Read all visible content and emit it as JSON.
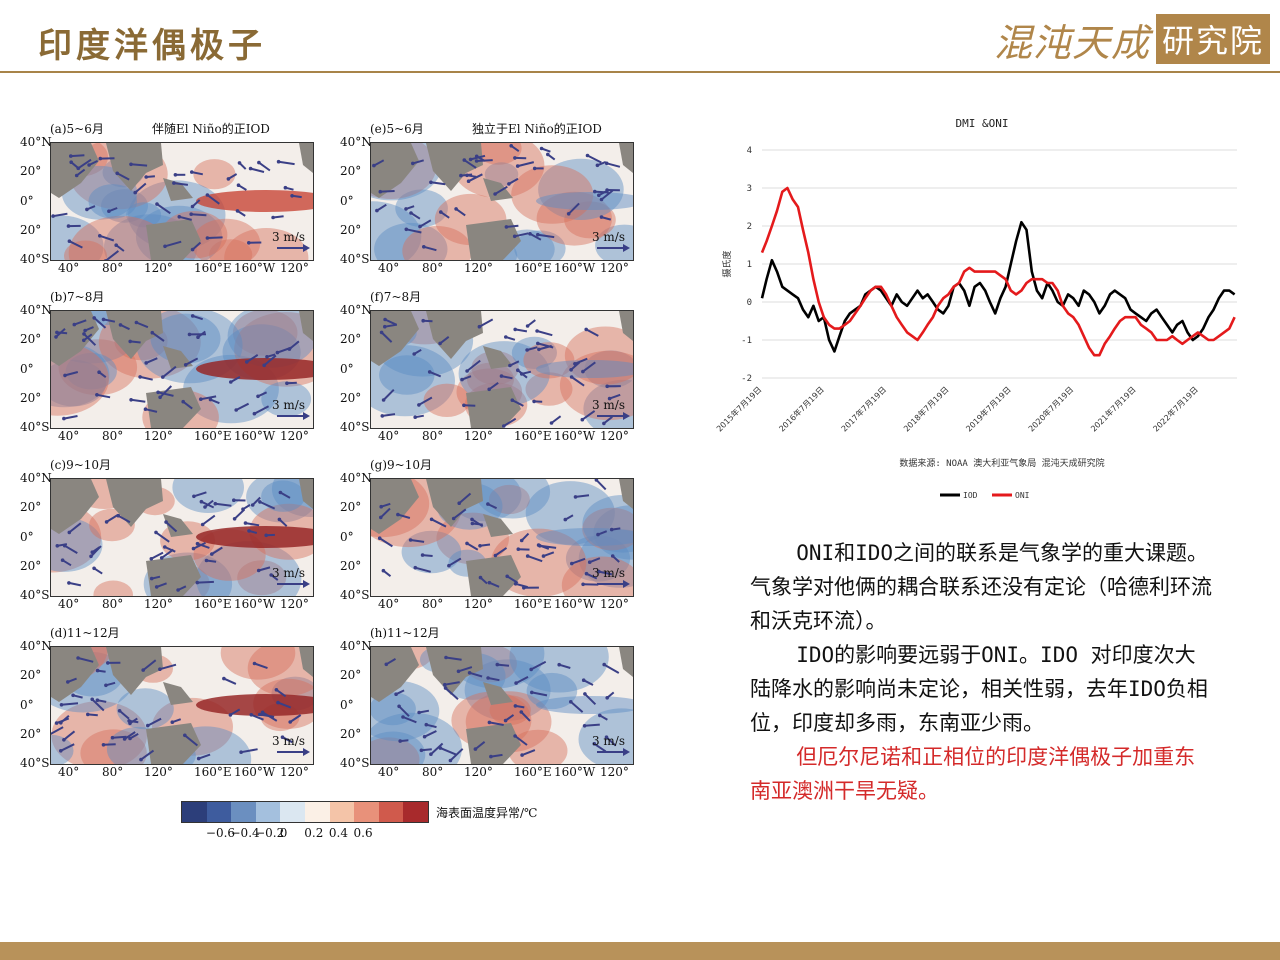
{
  "header": {
    "title": "印度洋偶极子",
    "logo_script": "混沌天成",
    "logo_box": "研究院"
  },
  "colors": {
    "brand": "#a88449",
    "iod_line": "#000000",
    "oni_line": "#e41a1c",
    "red_text": "#d42a2a"
  },
  "figure": {
    "panels": [
      {
        "label": "(a)5~6月",
        "subtitle": "伴随El Niño的正IOD"
      },
      {
        "label": "(e)5~6月",
        "subtitle": "独立于El Niño的正IOD"
      },
      {
        "label": "(b)7~8月",
        "subtitle": ""
      },
      {
        "label": "(f)7~8月",
        "subtitle": ""
      },
      {
        "label": "(c)9~10月",
        "subtitle": ""
      },
      {
        "label": "(g)9~10月",
        "subtitle": ""
      },
      {
        "label": "(d)11~12月",
        "subtitle": ""
      },
      {
        "label": "(h)11~12月",
        "subtitle": ""
      }
    ],
    "lat_labels": [
      "40°N",
      "20°",
      "0°",
      "20°",
      "40°S"
    ],
    "lon_labels": [
      "40°",
      "80°",
      "120°",
      "160°E",
      "160°W",
      "120°"
    ],
    "wind_scale": "3 m/s",
    "colorbar": {
      "ticks": [
        "−0.6",
        "−0.4",
        "−0.2",
        "0",
        "0.2",
        "0.4",
        "0.6"
      ],
      "label": "海表面温度异常/℃",
      "colors": [
        "#2c3e7a",
        "#3e5c9e",
        "#6b8fc0",
        "#a4c0de",
        "#dbe7f1",
        "#fbf0e6",
        "#f4c4a8",
        "#e8917a",
        "#d05a4c",
        "#a82a2c"
      ]
    }
  },
  "chart_data": {
    "type": "line",
    "title": "DMI &ONI",
    "xlabel": "",
    "ylabel": "摄氏度",
    "ylim": [
      -2,
      4
    ],
    "yticks": [
      -2,
      -1,
      0,
      1,
      2,
      3,
      4
    ],
    "x_ticks": [
      "2015年7月19日",
      "2016年7月19日",
      "2017年7月19日",
      "2018年7月19日",
      "2019年7月19日",
      "2020年7月19日",
      "2021年7月19日",
      "2022年7月19日"
    ],
    "x_range": [
      "2015-07-19",
      "2023-03-01"
    ],
    "source": "数据来源: NOAA 澳大利亚气象局 混沌天成研究院",
    "legend_position": "bottom",
    "series": [
      {
        "name": "IOD",
        "x": [
          "2015-07-19",
          "2015-08-15",
          "2015-09-15",
          "2015-10-15",
          "2015-11-15",
          "2015-12-15",
          "2016-01-15",
          "2016-02-15",
          "2016-03-15",
          "2016-04-15",
          "2016-05-15",
          "2016-06-15",
          "2016-07-15",
          "2016-08-15",
          "2016-09-15",
          "2016-10-15",
          "2016-11-15",
          "2016-12-15",
          "2017-01-15",
          "2017-02-15",
          "2017-03-15",
          "2017-04-15",
          "2017-05-15",
          "2017-06-15",
          "2017-07-15",
          "2017-08-15",
          "2017-09-15",
          "2017-10-15",
          "2017-11-15",
          "2017-12-15",
          "2018-01-15",
          "2018-02-15",
          "2018-03-15",
          "2018-04-15",
          "2018-05-15",
          "2018-06-15",
          "2018-07-15",
          "2018-08-15",
          "2018-09-15",
          "2018-10-15",
          "2018-11-15",
          "2018-12-15",
          "2019-01-15",
          "2019-02-15",
          "2019-03-15",
          "2019-04-15",
          "2019-05-15",
          "2019-06-15",
          "2019-07-15",
          "2019-08-15",
          "2019-09-15",
          "2019-10-15",
          "2019-11-15",
          "2019-12-15",
          "2020-01-15",
          "2020-02-15",
          "2020-03-15",
          "2020-04-15",
          "2020-05-15",
          "2020-06-15",
          "2020-07-15",
          "2020-08-15",
          "2020-09-15",
          "2020-10-15",
          "2020-11-15",
          "2020-12-15",
          "2021-01-15",
          "2021-02-15",
          "2021-03-15",
          "2021-04-15",
          "2021-05-15",
          "2021-06-15",
          "2021-07-15",
          "2021-08-15",
          "2021-09-15",
          "2021-10-15",
          "2021-11-15",
          "2021-12-15",
          "2022-01-15",
          "2022-02-15",
          "2022-03-15",
          "2022-04-15",
          "2022-05-15",
          "2022-06-15",
          "2022-07-15",
          "2022-08-15",
          "2022-09-15",
          "2022-10-15",
          "2022-11-15",
          "2022-12-15",
          "2023-01-15",
          "2023-02-15"
        ],
        "y": [
          0.1,
          0.6,
          1.1,
          0.8,
          0.4,
          0.3,
          0.2,
          0.1,
          -0.2,
          -0.4,
          -0.1,
          -0.5,
          -0.4,
          -1.0,
          -1.3,
          -0.9,
          -0.5,
          -0.3,
          -0.2,
          -0.1,
          0.2,
          0.3,
          0.4,
          0.3,
          0.1,
          -0.1,
          0.2,
          0.0,
          -0.1,
          0.1,
          0.3,
          0.1,
          0.2,
          0.0,
          -0.2,
          -0.3,
          -0.1,
          0.4,
          0.5,
          0.3,
          -0.1,
          0.4,
          0.5,
          0.3,
          0.0,
          -0.3,
          0.1,
          0.4,
          1.0,
          1.6,
          2.1,
          1.9,
          0.8,
          0.3,
          0.1,
          0.5,
          0.3,
          0.0,
          -0.1,
          0.2,
          0.1,
          -0.1,
          0.3,
          0.2,
          0.0,
          -0.3,
          -0.1,
          0.2,
          0.3,
          0.2,
          0.1,
          -0.2,
          -0.3,
          -0.4,
          -0.5,
          -0.3,
          -0.2,
          -0.4,
          -0.6,
          -0.8,
          -0.6,
          -0.5,
          -0.8,
          -1.0,
          -0.9,
          -0.7,
          -0.4,
          -0.2,
          0.1,
          0.3,
          0.3,
          0.2
        ]
      },
      {
        "name": "ONI",
        "x": [
          "2015-07-19",
          "2015-08-15",
          "2015-09-15",
          "2015-10-15",
          "2015-11-15",
          "2015-12-15",
          "2016-01-15",
          "2016-02-15",
          "2016-03-15",
          "2016-04-15",
          "2016-05-15",
          "2016-06-15",
          "2016-07-15",
          "2016-08-15",
          "2016-09-15",
          "2016-10-15",
          "2016-11-15",
          "2016-12-15",
          "2017-01-15",
          "2017-02-15",
          "2017-03-15",
          "2017-04-15",
          "2017-05-15",
          "2017-06-15",
          "2017-07-15",
          "2017-08-15",
          "2017-09-15",
          "2017-10-15",
          "2017-11-15",
          "2017-12-15",
          "2018-01-15",
          "2018-02-15",
          "2018-03-15",
          "2018-04-15",
          "2018-05-15",
          "2018-06-15",
          "2018-07-15",
          "2018-08-15",
          "2018-09-15",
          "2018-10-15",
          "2018-11-15",
          "2018-12-15",
          "2019-01-15",
          "2019-02-15",
          "2019-03-15",
          "2019-04-15",
          "2019-05-15",
          "2019-06-15",
          "2019-07-15",
          "2019-08-15",
          "2019-09-15",
          "2019-10-15",
          "2019-11-15",
          "2019-12-15",
          "2020-01-15",
          "2020-02-15",
          "2020-03-15",
          "2020-04-15",
          "2020-05-15",
          "2020-06-15",
          "2020-07-15",
          "2020-08-15",
          "2020-09-15",
          "2020-10-15",
          "2020-11-15",
          "2020-12-15",
          "2021-01-15",
          "2021-02-15",
          "2021-03-15",
          "2021-04-15",
          "2021-05-15",
          "2021-06-15",
          "2021-07-15",
          "2021-08-15",
          "2021-09-15",
          "2021-10-15",
          "2021-11-15",
          "2021-12-15",
          "2022-01-15",
          "2022-02-15",
          "2022-03-15",
          "2022-04-15",
          "2022-05-15",
          "2022-06-15",
          "2022-07-15",
          "2022-08-15",
          "2022-09-15",
          "2022-10-15",
          "2022-11-15",
          "2022-12-15",
          "2023-01-15",
          "2023-02-15"
        ],
        "y": [
          1.3,
          1.6,
          2.0,
          2.4,
          2.9,
          3.0,
          2.7,
          2.5,
          1.9,
          1.3,
          0.6,
          0.0,
          -0.4,
          -0.6,
          -0.7,
          -0.7,
          -0.6,
          -0.5,
          -0.3,
          -0.1,
          0.1,
          0.3,
          0.4,
          0.4,
          0.2,
          -0.1,
          -0.4,
          -0.6,
          -0.8,
          -0.9,
          -1.0,
          -0.8,
          -0.6,
          -0.4,
          -0.1,
          0.1,
          0.2,
          0.4,
          0.5,
          0.8,
          0.9,
          0.8,
          0.8,
          0.8,
          0.8,
          0.8,
          0.7,
          0.6,
          0.3,
          0.2,
          0.3,
          0.5,
          0.6,
          0.6,
          0.6,
          0.5,
          0.5,
          0.3,
          -0.1,
          -0.3,
          -0.4,
          -0.6,
          -0.9,
          -1.2,
          -1.4,
          -1.4,
          -1.1,
          -0.9,
          -0.7,
          -0.5,
          -0.4,
          -0.4,
          -0.4,
          -0.6,
          -0.7,
          -0.8,
          -1.0,
          -1.0,
          -1.0,
          -0.9,
          -1.0,
          -1.1,
          -1.0,
          -0.9,
          -0.8,
          -0.9,
          -1.0,
          -1.0,
          -0.9,
          -0.8,
          -0.7,
          -0.4
        ]
      }
    ]
  },
  "text": {
    "p1": "ONI和IDO之间的联系是气象学的重大课题。气象学对他俩的耦合联系还没有定论（哈德利环流和沃克环流）。",
    "p2": "IDO的影响要远弱于ONI。IDO 对印度次大陆降水的影响尚未定论，相关性弱，去年IDO负相位，印度却多雨，东南亚少雨。",
    "p3": "但厄尔尼诺和正相位的印度洋偶极子加重东南亚澳洲干旱无疑。"
  }
}
